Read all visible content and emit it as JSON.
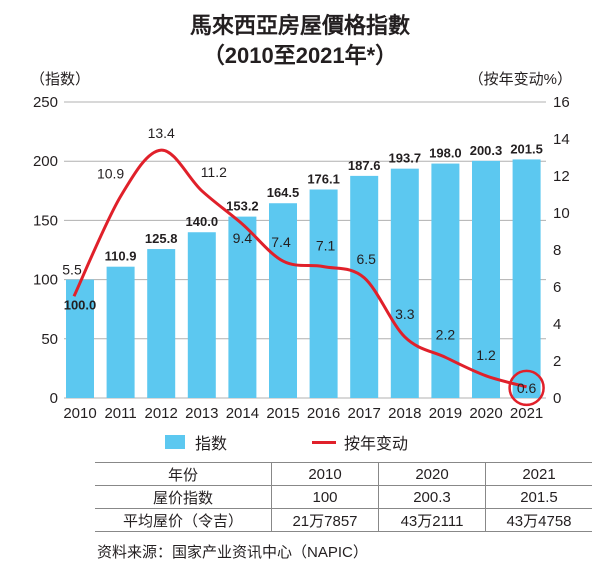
{
  "title": "馬來西亞房屋價格指數",
  "subtitle": "（2010至2021年*）",
  "chart_data": {
    "type": "bar+line",
    "title": "馬來西亞房屋價格指數（2010至2021年*）",
    "categories": [
      "2010",
      "2011",
      "2012",
      "2013",
      "2014",
      "2015",
      "2016",
      "2017",
      "2018",
      "2019",
      "2020",
      "2021"
    ],
    "series": [
      {
        "name": "指数",
        "type": "bar",
        "axis": "left",
        "color": "#5cc8f0",
        "values": [
          100.0,
          110.9,
          125.8,
          140.0,
          153.2,
          164.5,
          176.1,
          187.6,
          193.7,
          198.0,
          200.3,
          201.5
        ],
        "labels": [
          "100.0",
          "110.9",
          "125.8",
          "140.0",
          "153.2",
          "164.5",
          "176.1",
          "187.6",
          "193.7",
          "198.0",
          "200.3",
          "201.5"
        ]
      },
      {
        "name": "按年变动",
        "type": "line",
        "axis": "right",
        "color": "#e0202a",
        "values": [
          5.5,
          10.9,
          13.4,
          11.2,
          9.4,
          7.4,
          7.1,
          6.5,
          3.3,
          2.2,
          1.2,
          0.6
        ],
        "labels": [
          "5.5",
          "10.9",
          "13.4",
          "11.2",
          "9.4",
          "7.4",
          "7.1",
          "6.5",
          "3.3",
          "2.2",
          "1.2",
          "0.6"
        ]
      }
    ],
    "ylabel_left": "（指数）",
    "ylabel_right": "（按年变动%）",
    "ylim_left": [
      0,
      250
    ],
    "ylim_right": [
      0,
      16
    ],
    "yticks_left": [
      "0",
      "50",
      "100",
      "150",
      "200",
      "250"
    ],
    "yticks_right": [
      "0",
      "2",
      "4",
      "6",
      "8",
      "10",
      "12",
      "14",
      "16"
    ],
    "grid": true,
    "highlight": "0.6",
    "legend_position": "bottom"
  },
  "table": {
    "rows": [
      [
        "年份",
        "2010",
        "2020",
        "2021"
      ],
      [
        "屋价指数",
        "100",
        "200.3",
        "201.5"
      ],
      [
        "平均屋价（令吉）",
        "21万7857",
        "43万2111",
        "43万4758"
      ]
    ]
  },
  "source": "资料来源：国家产业资讯中心（NAPIC）"
}
